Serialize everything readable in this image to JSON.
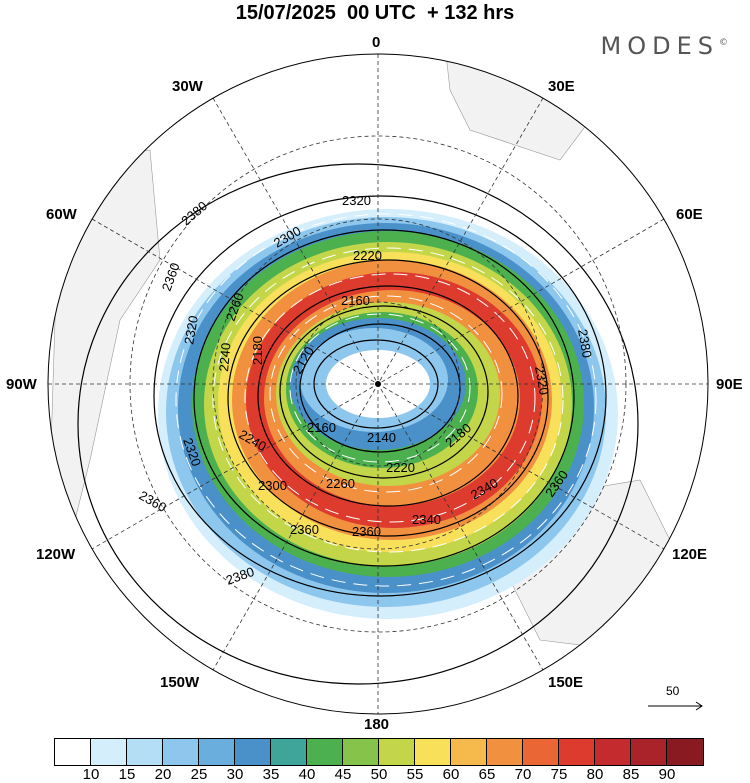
{
  "title": "15/07/2025  00 UTC  + 132 hrs",
  "brand": "MODES",
  "brand_mark": "©",
  "meridian_labels": {
    "lon_0": "0",
    "lon_30w": "30W",
    "lon_30e": "30E",
    "lon_60w": "60W",
    "lon_60e": "60E",
    "lon_90w": "90W",
    "lon_90e": "90E",
    "lon_120w": "120W",
    "lon_120e": "120E",
    "lon_150w": "150W",
    "lon_150e": "150E",
    "lon_180": "180"
  },
  "contour_labels": [
    "2380",
    "2320",
    "2300",
    "2220",
    "2160",
    "2120",
    "2360",
    "2320",
    "2260",
    "2240",
    "2180",
    "2380",
    "2320",
    "2240",
    "2320",
    "2160",
    "2140",
    "2180",
    "2220",
    "2260",
    "2300",
    "2340",
    "2360",
    "2360",
    "2360",
    "2340",
    "2360",
    "2380"
  ],
  "vector_reference": "50",
  "colorbar": {
    "ticks": [
      "10",
      "15",
      "20",
      "25",
      "30",
      "35",
      "40",
      "45",
      "50",
      "55",
      "60",
      "65",
      "70",
      "75",
      "80",
      "85",
      "90"
    ],
    "colors": [
      "#ffffff",
      "#d4eefb",
      "#b3def6",
      "#8ec7ee",
      "#6aaede",
      "#4a90c9",
      "#3fa59a",
      "#4cb04f",
      "#85c34a",
      "#c3d64a",
      "#f8e05a",
      "#f6b94c",
      "#f1913f",
      "#ea6634",
      "#dd3b2d",
      "#c42b2e",
      "#a9232b",
      "#8a1a22"
    ]
  },
  "colors": {
    "land": "#f2f2f2",
    "grid": "#333333"
  }
}
